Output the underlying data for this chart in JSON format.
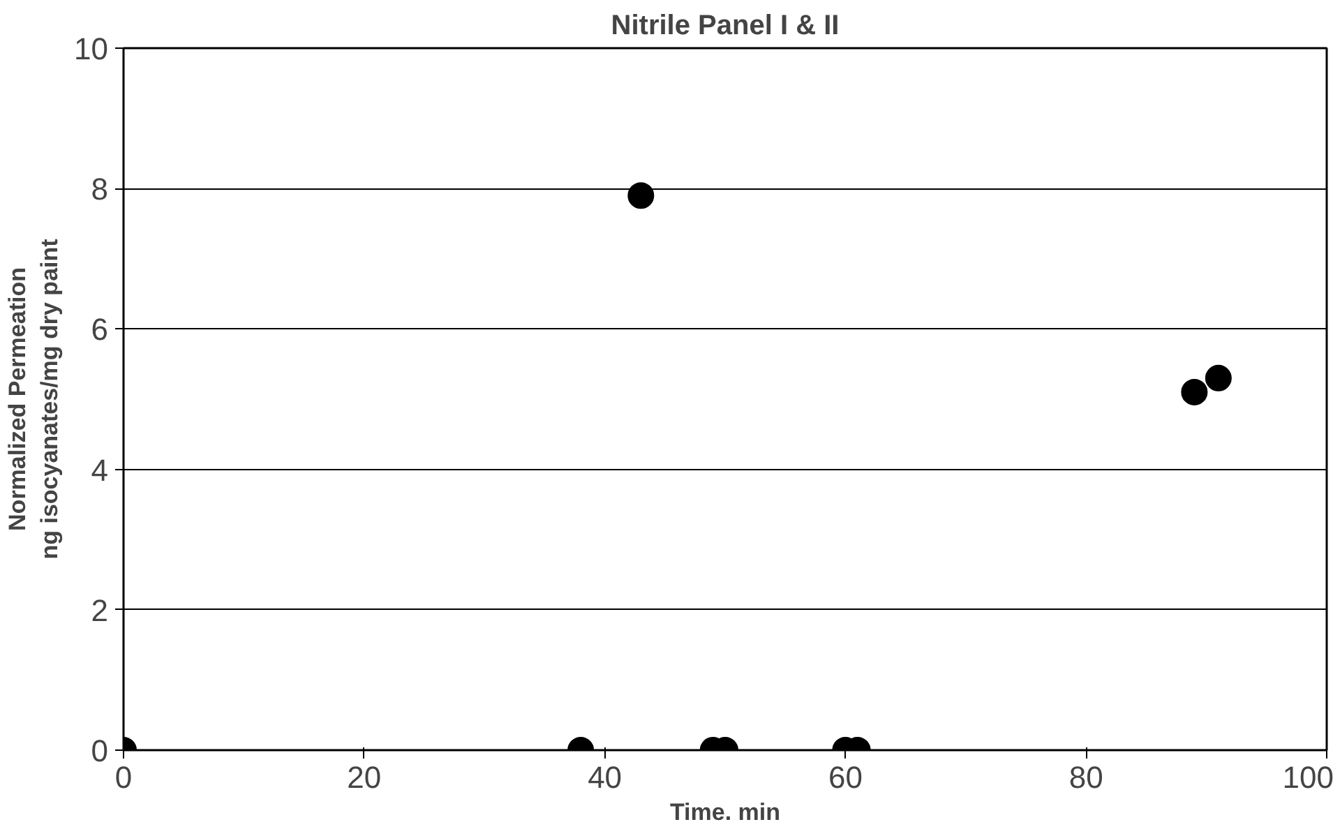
{
  "chart_data": {
    "type": "scatter",
    "title": "Nitrile Panel I & II",
    "xlabel": "Time. min",
    "ylabel": "Normalized Permeation\nng isocyanates/mg dry paint",
    "x": [
      0,
      38,
      43,
      49,
      50,
      60,
      61,
      89,
      91
    ],
    "series": [
      {
        "color": "#000000",
        "values": [
          0,
          0,
          7.9,
          0,
          0,
          0,
          0,
          5.1,
          5.3
        ]
      }
    ],
    "xlim": [
      0,
      100
    ],
    "xticks": [
      0,
      20,
      40,
      60,
      80,
      100
    ],
    "ylim": [
      0,
      10
    ],
    "yticks": [
      0,
      2,
      4,
      6,
      8,
      10
    ],
    "grid": "y",
    "marker": "circle"
  }
}
